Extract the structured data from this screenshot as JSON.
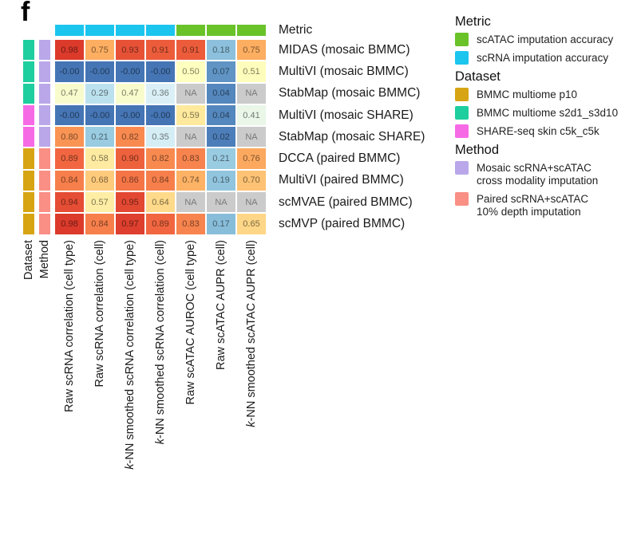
{
  "panel_label": "f",
  "axis_captions": {
    "dataset": "Dataset",
    "method": "Method",
    "metric": "Metric"
  },
  "legend": {
    "metric": {
      "title": "Metric",
      "items": [
        {
          "label": "scATAC imputation accuracy",
          "color": "#6AC229"
        },
        {
          "label": "scRNA imputation accuracy",
          "color": "#1BC5EE"
        }
      ]
    },
    "dataset": {
      "title": "Dataset",
      "items": [
        {
          "label": "BMMC multiome p10",
          "color": "#D7A514"
        },
        {
          "label": "BMMC multiome s2d1_s3d10",
          "color": "#1ECE9E"
        },
        {
          "label": "SHARE-seq skin c5k_c5k",
          "color": "#F76AE6"
        }
      ]
    },
    "method": {
      "title": "Method",
      "items": [
        {
          "lines": [
            "Mosaic scRNA+scATAC",
            "cross modality imputation"
          ],
          "color": "#B9A7E9"
        },
        {
          "lines": [
            "Paired scRNA+scATAC",
            "10% depth imputation"
          ],
          "color": "#FA8F85"
        }
      ]
    }
  },
  "chart_data": {
    "type": "heatmap",
    "title": "",
    "value_range": [
      0,
      1
    ],
    "na_color": "#CBCBCB",
    "palette": [
      "#4575B4",
      "#74ADD1",
      "#ABD9E9",
      "#E0F3F8",
      "#FFFFBF",
      "#FEE090",
      "#FDAE61",
      "#F46D43",
      "#D73027"
    ],
    "columns": [
      "Raw scRNA correlation (cell type)",
      "Raw scRNA correlation (cell)",
      "k-NN smoothed scRNA correlation (cell type)",
      "k-NN smoothed scRNA correlation (cell)",
      "Raw scATAC AUROC (cell type)",
      "Raw scATAC AUPR (cell)",
      "k-NN smoothed scATAC AUPR (cell)"
    ],
    "column_metric": [
      "scRNA imputation accuracy",
      "scRNA imputation accuracy",
      "scRNA imputation accuracy",
      "scRNA imputation accuracy",
      "scATAC imputation accuracy",
      "scATAC imputation accuracy",
      "scATAC imputation accuracy"
    ],
    "rows": [
      {
        "label": "MIDAS (mosaic BMMC)",
        "dataset": "BMMC multiome s2d1_s3d10",
        "method": "Mosaic scRNA+scATAC cross modality imputation",
        "values": [
          "0.98",
          "0.75",
          "0.93",
          "0.91",
          "0.91",
          "0.18",
          "0.75"
        ]
      },
      {
        "label": "MultiVI (mosaic BMMC)",
        "dataset": "BMMC multiome s2d1_s3d10",
        "method": "Mosaic scRNA+scATAC cross modality imputation",
        "values": [
          "-0.00",
          "-0.00",
          "-0.00",
          "-0.00",
          "0.50",
          "0.07",
          "0.51"
        ]
      },
      {
        "label": "StabMap (mosaic BMMC)",
        "dataset": "BMMC multiome s2d1_s3d10",
        "method": "Mosaic scRNA+scATAC cross modality imputation",
        "values": [
          "0.47",
          "0.29",
          "0.47",
          "0.36",
          "NA",
          "0.04",
          "NA"
        ]
      },
      {
        "label": "MultiVI (mosaic SHARE)",
        "dataset": "SHARE-seq skin c5k_c5k",
        "method": "Mosaic scRNA+scATAC cross modality imputation",
        "values": [
          "-0.00",
          "-0.00",
          "-0.00",
          "-0.00",
          "0.59",
          "0.04",
          "0.41"
        ]
      },
      {
        "label": "StabMap (mosaic SHARE)",
        "dataset": "SHARE-seq skin c5k_c5k",
        "method": "Mosaic scRNA+scATAC cross modality imputation",
        "values": [
          "0.80",
          "0.21",
          "0.82",
          "0.35",
          "NA",
          "0.02",
          "NA"
        ]
      },
      {
        "label": "DCCA (paired BMMC)",
        "dataset": "BMMC multiome p10",
        "method": "Paired scRNA+scATAC 10% depth imputation",
        "values": [
          "0.89",
          "0.58",
          "0.90",
          "0.82",
          "0.83",
          "0.21",
          "0.76"
        ]
      },
      {
        "label": "MultiVI (paired BMMC)",
        "dataset": "BMMC multiome p10",
        "method": "Paired scRNA+scATAC 10% depth imputation",
        "values": [
          "0.84",
          "0.68",
          "0.86",
          "0.84",
          "0.74",
          "0.19",
          "0.70"
        ]
      },
      {
        "label": "scMVAE (paired BMMC)",
        "dataset": "BMMC multiome p10",
        "method": "Paired scRNA+scATAC 10% depth imputation",
        "values": [
          "0.94",
          "0.57",
          "0.95",
          "0.64",
          "NA",
          "NA",
          "NA"
        ]
      },
      {
        "label": "scMVP (paired BMMC)",
        "dataset": "BMMC multiome p10",
        "method": "Paired scRNA+scATAC 10% depth imputation",
        "values": [
          "0.98",
          "0.84",
          "0.97",
          "0.89",
          "0.83",
          "0.17",
          "0.65"
        ]
      }
    ]
  }
}
